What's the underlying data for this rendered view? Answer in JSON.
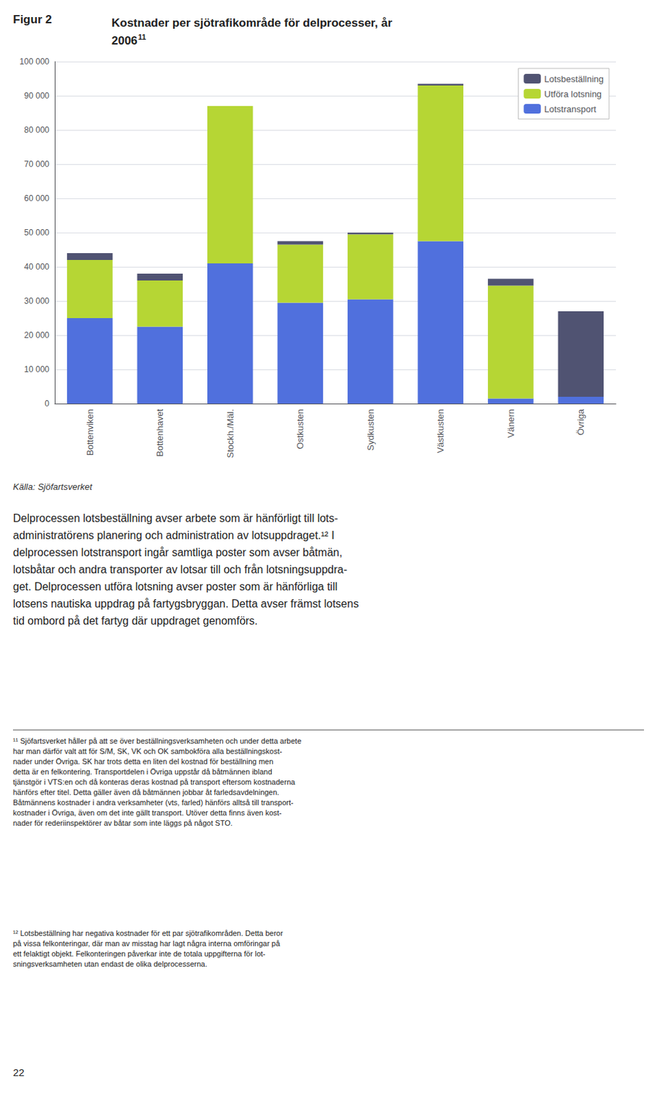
{
  "chart_data": {
    "type": "bar",
    "title": "Kostnader per sjötrafikområde för delprocesser, år\n2006",
    "annotations": [
      "Figur 2",
      "11",
      "Källa: Sjöfartsverket",
      "Delprocessen lotsbeställning avser arbete som är hänförligt till lots-\nadministratörens planering och administration av lotsuppdraget.¹² I\ndelprocessen lotstransport ingår samtliga poster som avser båtmän,\nlotsbåtar och andra transporter av lotsar till och från lotsningsuppdra-\nget. Delprocessen utföra lotsning avser poster som är hänförliga till\nlotsens nautiska uppdrag på fartygsbryggan. Detta avser främst lotsens\ntid ombord på det fartyg där uppdraget genomförs.",
      "¹¹ Sjöfartsverket håller på att se över beställningsverksamheten och under detta arbete\nhar man därför valt att för S/M, SK, VK och OK sambokföra alla beställningskost-\nnader under Övriga. SK har trots detta en liten del kostnad för beställning men\ndetta är en felkontering. Transportdelen i Övriga uppstår då båtmännen ibland\ntjänstgör i VTS:en och då konteras deras kostnad på transport eftersom kostnaderna\nhänförs efter titel. Detta gäller även då båtmännen jobbar åt farledsavdelningen.\nBåtmännens kostnader i andra verksamheter (vts, farled) hänförs alltså till transport-\nkostnader i Övriga, även om det inte gällt transport. Utöver detta finns även kost-\nnader för rederiinspektörer av båtar som inte läggs på något STO.",
      "¹² Lotsbeställning har negativa kostnader för ett par sjötrafikområden. Detta beror\npå vissa felkonteringar, där man av misstag har lagt några interna omföringar på\nett felaktigt objekt. Felkonteringen påverkar inte de totala uppgifterna för lot-\nsningsverksamheten utan endast de olika delprocesserna.",
      "22"
    ],
    "categories": [
      "Bottenviken",
      "Bottenhavet",
      "Stockh./Mäl.",
      "Ostkusten",
      "Sydkusten",
      "Västkusten",
      "Vänern",
      "Övriga"
    ],
    "series": [
      {
        "name": "Lotstransport",
        "values": [
          25000,
          22500,
          41000,
          29500,
          30500,
          47500,
          1500,
          2000
        ]
      },
      {
        "name": "Utföra lotsning",
        "values": [
          17000,
          13500,
          46000,
          17000,
          19000,
          45500,
          33000,
          0
        ]
      },
      {
        "name": "Lotsbeställning",
        "values": [
          2000,
          2000,
          0,
          1000,
          500,
          500,
          2000,
          25000
        ]
      }
    ],
    "stacked": true,
    "ylim": [
      0,
      100000
    ],
    "yticks": [
      0,
      {
        "value": 10000,
        "label": "10 000"
      },
      {
        "value": 20000,
        "label": "20 000"
      },
      {
        "value": 30000,
        "label": "30 000"
      },
      {
        "value": 40000,
        "label": "40 000"
      },
      {
        "value": 50000,
        "label": "50 000"
      },
      {
        "value": 60000,
        "label": "60 000"
      },
      {
        "value": 70000,
        "label": "70 000"
      },
      {
        "value": 80000,
        "label": "80 000"
      },
      {
        "value": 90000,
        "label": "90 000"
      },
      {
        "value": 100000,
        "label": "100 000"
      }
    ],
    "grid": true,
    "legend": "upper right"
  }
}
